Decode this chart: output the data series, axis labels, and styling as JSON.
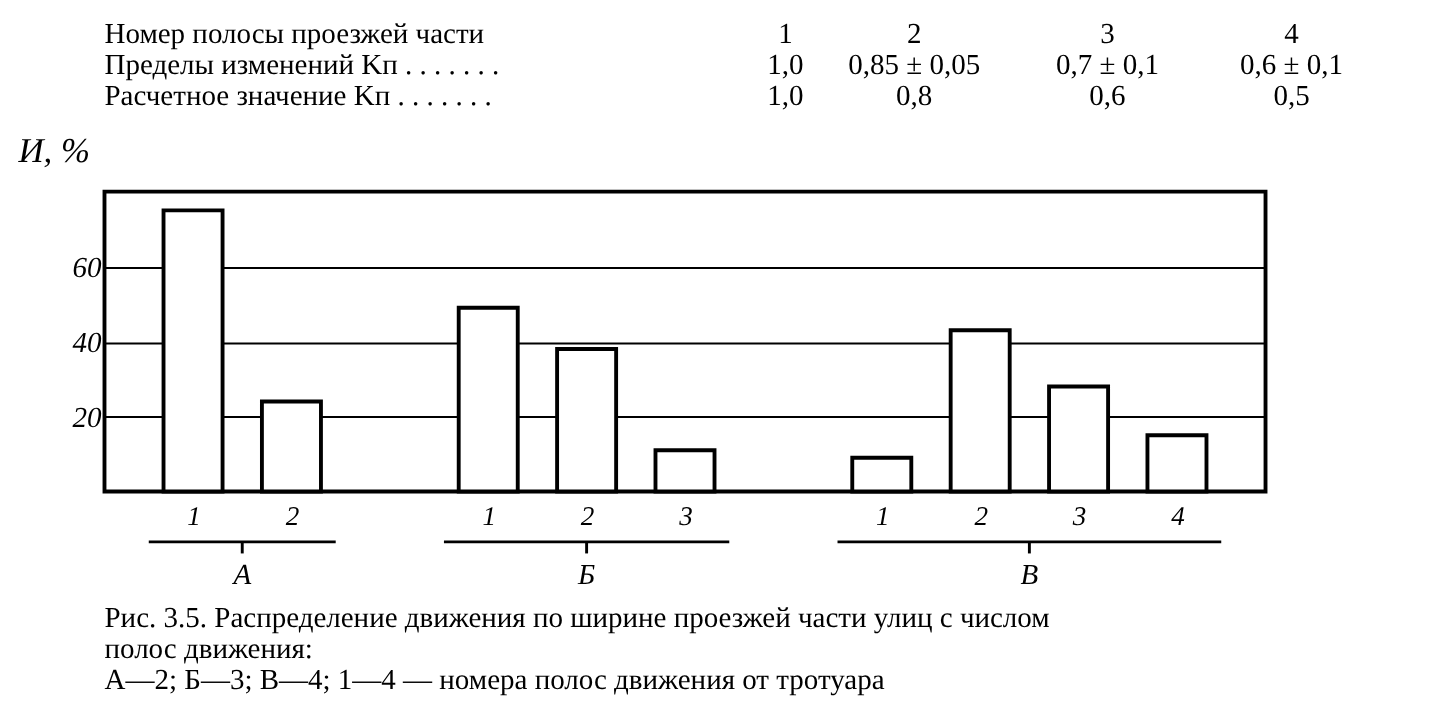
{
  "chart_data": {
    "type": "bar",
    "ylabel": "И, %",
    "categories": [
      "1",
      "2",
      null,
      "1",
      "2",
      "3",
      null,
      "1",
      "2",
      "3",
      "4"
    ],
    "values": [
      75,
      24,
      null,
      49,
      38,
      11,
      null,
      9,
      43,
      28,
      15
    ],
    "color": "#ffffff",
    "ylim": [
      0,
      80
    ],
    "yticks": [
      20,
      40,
      60
    ],
    "grid": "y",
    "annotations": [
      "А",
      "Б",
      "В",
      "Номер полосы проезжей части",
      "1",
      "2",
      "3",
      "4",
      "Пределы изменений Kп . . . . . . .",
      "1,0",
      "0,85 ± 0,05",
      "0,7 ± 0,1",
      "0,6 ± 0,1",
      "Расчетное значение Kп . . . . . . .",
      "1,0",
      "0,8",
      "0,6",
      "0,5",
      "Рис. 3.5. Распределение движения по ширине проезжей части улиц с числом",
      "полос движения:",
      "А—2; Б—3; В—4; 1—4 — номера полос движения от тротуара"
    ]
  }
}
